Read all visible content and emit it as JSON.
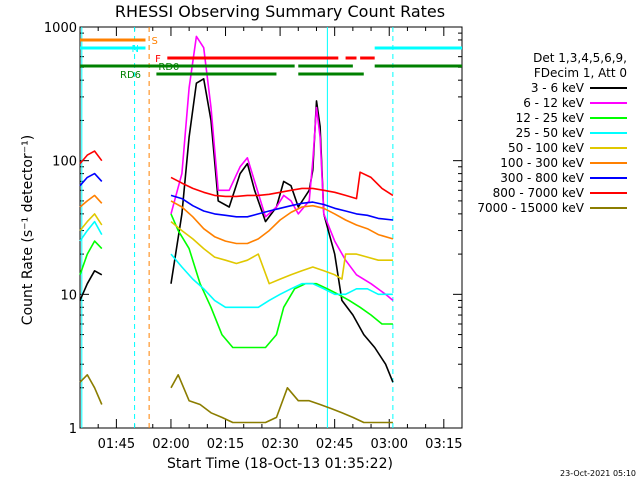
{
  "chart_data": {
    "type": "line",
    "title": "RHESSI Observing Summary Count Rates",
    "xlabel": "Start Time (18-Oct-13 01:35:22)",
    "ylabel": "Count Rate (s⁻¹ detector⁻¹)",
    "yscale": "log",
    "ylim": [
      1,
      1000
    ],
    "y_ticks": [
      1,
      10,
      100,
      1000
    ],
    "y_tick_labels": [
      "1",
      "10",
      "100",
      "1000"
    ],
    "xlim_min": [
      95,
      200
    ],
    "x_ticks": [
      105,
      120,
      135,
      150,
      165,
      180,
      195
    ],
    "x_tick_labels": [
      "01:45",
      "02:00",
      "02:15",
      "02:30",
      "02:45",
      "03:00",
      "03:15"
    ],
    "legend_position": "right",
    "legend_header": [
      "Det 1,3,4,5,6,9,",
      "FDecim 1, Att 0"
    ],
    "timestamp": "23-Oct-2021 05:10",
    "series": [
      {
        "name": "3 - 6 keV",
        "color": "#000000",
        "points": [
          [
            95,
            9
          ],
          [
            97,
            12
          ],
          [
            99,
            15
          ],
          [
            101,
            14
          ],
          [
            120,
            12
          ],
          [
            123,
            40
          ],
          [
            125,
            150
          ],
          [
            127,
            380
          ],
          [
            129,
            410
          ],
          [
            131,
            200
          ],
          [
            133,
            50
          ],
          [
            136,
            45
          ],
          [
            139,
            80
          ],
          [
            141,
            95
          ],
          [
            143,
            60
          ],
          [
            146,
            35
          ],
          [
            149,
            45
          ],
          [
            151,
            70
          ],
          [
            153,
            65
          ],
          [
            155,
            45
          ],
          [
            158,
            60
          ],
          [
            159,
            85
          ],
          [
            160,
            280
          ],
          [
            161,
            180
          ],
          [
            162,
            40
          ],
          [
            165,
            20
          ],
          [
            167,
            9
          ],
          [
            170,
            7
          ],
          [
            173,
            5
          ],
          [
            176,
            4
          ],
          [
            179,
            3
          ],
          [
            181,
            2.2
          ]
        ]
      },
      {
        "name": "6 - 12 keV",
        "color": "#ff00ff",
        "points": [
          [
            120,
            40
          ],
          [
            123,
            80
          ],
          [
            125,
            350
          ],
          [
            127,
            850
          ],
          [
            129,
            700
          ],
          [
            131,
            250
          ],
          [
            133,
            60
          ],
          [
            136,
            60
          ],
          [
            139,
            90
          ],
          [
            141,
            105
          ],
          [
            143,
            70
          ],
          [
            146,
            38
          ],
          [
            149,
            45
          ],
          [
            151,
            55
          ],
          [
            153,
            50
          ],
          [
            155,
            40
          ],
          [
            158,
            50
          ],
          [
            159,
            100
          ],
          [
            160,
            250
          ],
          [
            161,
            150
          ],
          [
            162,
            40
          ],
          [
            165,
            25
          ],
          [
            168,
            18
          ],
          [
            171,
            14
          ],
          [
            175,
            12
          ],
          [
            179,
            10
          ],
          [
            181,
            9
          ]
        ]
      },
      {
        "name": "12 - 25 keV",
        "color": "#00ff00",
        "points": [
          [
            95,
            14
          ],
          [
            97,
            20
          ],
          [
            99,
            25
          ],
          [
            101,
            22
          ],
          [
            120,
            40
          ],
          [
            122,
            30
          ],
          [
            125,
            22
          ],
          [
            128,
            12
          ],
          [
            131,
            8
          ],
          [
            134,
            5
          ],
          [
            137,
            4
          ],
          [
            140,
            4
          ],
          [
            143,
            4
          ],
          [
            146,
            4
          ],
          [
            149,
            5
          ],
          [
            151,
            8
          ],
          [
            154,
            11
          ],
          [
            157,
            12
          ],
          [
            160,
            12
          ],
          [
            163,
            11
          ],
          [
            166,
            10
          ],
          [
            169,
            9
          ],
          [
            172,
            8
          ],
          [
            175,
            7
          ],
          [
            178,
            6
          ],
          [
            181,
            6
          ]
        ]
      },
      {
        "name": "25 - 50 keV",
        "color": "#00ffff",
        "points": [
          [
            95,
            25
          ],
          [
            97,
            30
          ],
          [
            99,
            35
          ],
          [
            101,
            28
          ],
          [
            120,
            20
          ],
          [
            123,
            16
          ],
          [
            126,
            13
          ],
          [
            129,
            11
          ],
          [
            132,
            9
          ],
          [
            135,
            8
          ],
          [
            138,
            8
          ],
          [
            141,
            8
          ],
          [
            144,
            8
          ],
          [
            147,
            9
          ],
          [
            150,
            10
          ],
          [
            153,
            11
          ],
          [
            156,
            12
          ],
          [
            159,
            12
          ],
          [
            162,
            11
          ],
          [
            165,
            10
          ],
          [
            168,
            10
          ],
          [
            171,
            11
          ],
          [
            174,
            11
          ],
          [
            177,
            10
          ],
          [
            181,
            10
          ]
        ]
      },
      {
        "name": "50 - 100 keV",
        "color": "#e0c800",
        "points": [
          [
            95,
            30
          ],
          [
            97,
            35
          ],
          [
            99,
            40
          ],
          [
            101,
            33
          ],
          [
            120,
            35
          ],
          [
            123,
            30
          ],
          [
            126,
            26
          ],
          [
            129,
            22
          ],
          [
            132,
            19
          ],
          [
            135,
            18
          ],
          [
            138,
            17
          ],
          [
            141,
            18
          ],
          [
            144,
            20
          ],
          [
            147,
            12
          ],
          [
            150,
            13
          ],
          [
            153,
            14
          ],
          [
            156,
            15
          ],
          [
            159,
            16
          ],
          [
            162,
            15
          ],
          [
            165,
            14
          ],
          [
            167,
            13
          ],
          [
            168,
            20
          ],
          [
            171,
            20
          ],
          [
            174,
            19
          ],
          [
            177,
            18
          ],
          [
            181,
            18
          ]
        ]
      },
      {
        "name": "100 - 300 keV",
        "color": "#ff8000",
        "points": [
          [
            95,
            45
          ],
          [
            97,
            50
          ],
          [
            99,
            55
          ],
          [
            101,
            48
          ],
          [
            120,
            50
          ],
          [
            123,
            45
          ],
          [
            126,
            38
          ],
          [
            129,
            31
          ],
          [
            132,
            27
          ],
          [
            135,
            25
          ],
          [
            138,
            24
          ],
          [
            141,
            24
          ],
          [
            144,
            26
          ],
          [
            147,
            30
          ],
          [
            150,
            36
          ],
          [
            153,
            41
          ],
          [
            156,
            45
          ],
          [
            159,
            46
          ],
          [
            162,
            44
          ],
          [
            165,
            40
          ],
          [
            168,
            36
          ],
          [
            171,
            33
          ],
          [
            174,
            31
          ],
          [
            177,
            28
          ],
          [
            181,
            26
          ]
        ]
      },
      {
        "name": "300 - 800 keV",
        "color": "#0000ff",
        "points": [
          [
            95,
            65
          ],
          [
            97,
            75
          ],
          [
            99,
            80
          ],
          [
            101,
            70
          ],
          [
            120,
            55
          ],
          [
            123,
            52
          ],
          [
            126,
            46
          ],
          [
            129,
            42
          ],
          [
            132,
            40
          ],
          [
            135,
            39
          ],
          [
            138,
            38
          ],
          [
            141,
            38
          ],
          [
            144,
            40
          ],
          [
            147,
            42
          ],
          [
            150,
            44
          ],
          [
            153,
            46
          ],
          [
            156,
            48
          ],
          [
            159,
            49
          ],
          [
            162,
            47
          ],
          [
            165,
            44
          ],
          [
            168,
            42
          ],
          [
            171,
            40
          ],
          [
            174,
            39
          ],
          [
            177,
            37
          ],
          [
            181,
            36
          ]
        ]
      },
      {
        "name": "800 - 7000 keV",
        "color": "#ff0000",
        "points": [
          [
            95,
            95
          ],
          [
            97,
            110
          ],
          [
            99,
            118
          ],
          [
            101,
            100
          ],
          [
            120,
            75
          ],
          [
            123,
            68
          ],
          [
            126,
            62
          ],
          [
            129,
            58
          ],
          [
            132,
            55
          ],
          [
            135,
            54
          ],
          [
            138,
            54
          ],
          [
            141,
            55
          ],
          [
            144,
            55
          ],
          [
            147,
            56
          ],
          [
            150,
            58
          ],
          [
            153,
            60
          ],
          [
            156,
            62
          ],
          [
            159,
            62
          ],
          [
            162,
            60
          ],
          [
            165,
            58
          ],
          [
            168,
            55
          ],
          [
            171,
            52
          ],
          [
            172,
            82
          ],
          [
            175,
            75
          ],
          [
            178,
            62
          ],
          [
            181,
            55
          ]
        ]
      },
      {
        "name": "7000 - 15000 keV",
        "color": "#8b7d00",
        "points": [
          [
            95,
            2.2
          ],
          [
            97,
            2.5
          ],
          [
            99,
            2
          ],
          [
            101,
            1.5
          ],
          [
            120,
            2
          ],
          [
            122,
            2.5
          ],
          [
            125,
            1.6
          ],
          [
            128,
            1.5
          ],
          [
            131,
            1.3
          ],
          [
            134,
            1.2
          ],
          [
            137,
            1.1
          ],
          [
            140,
            1.1
          ],
          [
            143,
            1.1
          ],
          [
            146,
            1.1
          ],
          [
            149,
            1.2
          ],
          [
            152,
            2
          ],
          [
            155,
            1.6
          ],
          [
            158,
            1.6
          ],
          [
            161,
            1.5
          ],
          [
            164,
            1.4
          ],
          [
            167,
            1.3
          ],
          [
            170,
            1.2
          ],
          [
            173,
            1.1
          ],
          [
            176,
            1.1
          ],
          [
            179,
            1.1
          ],
          [
            181,
            1.1
          ]
        ]
      }
    ],
    "flag_bars": [
      {
        "label": "S",
        "color": "#ff8000",
        "segments": [
          [
            95,
            113
          ]
        ]
      },
      {
        "label": "N",
        "color": "#00ffff",
        "segments": [
          [
            95,
            113
          ],
          [
            176,
            200
          ]
        ]
      },
      {
        "label": "F",
        "color": "#ff0000",
        "segments": [
          [
            119,
            166
          ],
          [
            168,
            171
          ],
          [
            172,
            176
          ]
        ]
      },
      {
        "label": "RD0",
        "color": "#008000",
        "segments": [
          [
            95,
            154
          ],
          [
            155,
            170
          ],
          [
            176,
            200
          ]
        ]
      },
      {
        "label": "RD6",
        "color": "#008000",
        "segments": [
          [
            116,
            149
          ],
          [
            155,
            173
          ]
        ]
      }
    ],
    "vlines": [
      {
        "x": 95.5,
        "color": "#00ffff",
        "style": "solid"
      },
      {
        "x": 110,
        "color": "#00ffff",
        "style": "dashed"
      },
      {
        "x": 114,
        "color": "#ff8000",
        "style": "dashed"
      },
      {
        "x": 163,
        "color": "#00ffff",
        "style": "solid"
      },
      {
        "x": 181,
        "color": "#00ffff",
        "style": "dashed"
      }
    ]
  }
}
